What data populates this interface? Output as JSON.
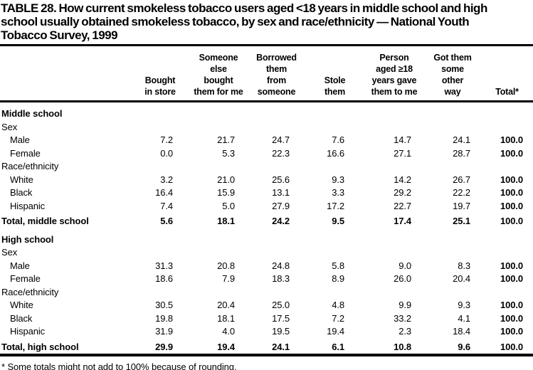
{
  "title": {
    "lines": [
      "TABLE 28. How current smokeless tobacco users aged <18 years in middle school and high",
      "school usually obtained smokeless tobacco, by sex and race/ethnicity — National Youth",
      "Tobacco Survey, 1999"
    ]
  },
  "columns": [
    {
      "text": "Bought\nin store"
    },
    {
      "text": "Someone\nelse\nbought\nthem for me"
    },
    {
      "text": "Borrowed\nthem\nfrom\nsomeone"
    },
    {
      "text": "Stole\nthem"
    },
    {
      "text": "Person\naged ≥18\nyears gave\nthem to me"
    },
    {
      "text": "Got them\nsome\nother\nway"
    },
    {
      "text": "Total*"
    }
  ],
  "rows": [
    {
      "type": "section",
      "indent": false,
      "label": "Middle school",
      "values": null
    },
    {
      "type": "subheader",
      "indent": false,
      "label": "Sex",
      "values": null
    },
    {
      "type": "data",
      "indent": true,
      "label": "Male",
      "values": [
        "7.2",
        "21.7",
        "24.7",
        "7.6",
        "14.7",
        "24.1",
        "100.0"
      ]
    },
    {
      "type": "data",
      "indent": true,
      "label": "Female",
      "values": [
        "0.0",
        "5.3",
        "22.3",
        "16.6",
        "27.1",
        "28.7",
        "100.0"
      ]
    },
    {
      "type": "subheader",
      "indent": false,
      "label": "Race/ethnicity",
      "values": null
    },
    {
      "type": "data",
      "indent": true,
      "label": "White",
      "values": [
        "3.2",
        "21.0",
        "25.6",
        "9.3",
        "14.2",
        "26.7",
        "100.0"
      ]
    },
    {
      "type": "data",
      "indent": true,
      "label": "Black",
      "values": [
        "16.4",
        "15.9",
        "13.1",
        "3.3",
        "29.2",
        "22.2",
        "100.0"
      ]
    },
    {
      "type": "data",
      "indent": true,
      "label": "Hispanic",
      "values": [
        "7.4",
        "5.0",
        "27.9",
        "17.2",
        "22.7",
        "19.7",
        "100.0"
      ]
    },
    {
      "type": "total",
      "indent": false,
      "label": "Total, middle school",
      "values": [
        "5.6",
        "18.1",
        "24.2",
        "9.5",
        "17.4",
        "25.1",
        "100.0"
      ]
    },
    {
      "type": "section",
      "indent": false,
      "label": "High school",
      "values": null
    },
    {
      "type": "subheader",
      "indent": false,
      "label": "Sex",
      "values": null
    },
    {
      "type": "data",
      "indent": true,
      "label": "Male",
      "values": [
        "31.3",
        "20.8",
        "24.8",
        "5.8",
        "9.0",
        "8.3",
        "100.0"
      ]
    },
    {
      "type": "data",
      "indent": true,
      "label": "Female",
      "values": [
        "18.6",
        "7.9",
        "18.3",
        "8.9",
        "26.0",
        "20.4",
        "100.0"
      ]
    },
    {
      "type": "subheader",
      "indent": false,
      "label": "Race/ethnicity",
      "values": null
    },
    {
      "type": "data",
      "indent": true,
      "label": "White",
      "values": [
        "30.5",
        "20.4",
        "25.0",
        "4.8",
        "9.9",
        "9.3",
        "100.0"
      ]
    },
    {
      "type": "data",
      "indent": true,
      "label": "Black",
      "values": [
        "19.8",
        "18.1",
        "17.5",
        "7.2",
        "33.2",
        "4.1",
        "100.0"
      ]
    },
    {
      "type": "data",
      "indent": true,
      "label": "Hispanic",
      "values": [
        "31.9",
        "4.0",
        "19.5",
        "19.4",
        "2.3",
        "18.4",
        "100.0"
      ]
    },
    {
      "type": "total",
      "indent": false,
      "label": "Total, high school",
      "values": [
        "29.9",
        "19.4",
        "24.1",
        "6.1",
        "10.8",
        "9.6",
        "100.0"
      ]
    }
  ],
  "footnote": "* Some totals might not add to 100% because of rounding.",
  "colors": {
    "text": "#000000",
    "background": "#ffffff",
    "rule": "#000000"
  }
}
